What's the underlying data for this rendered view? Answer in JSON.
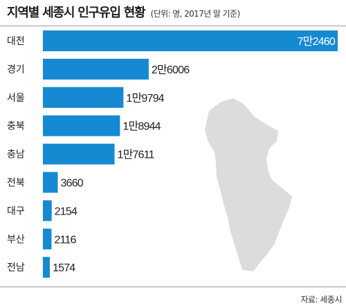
{
  "header": {
    "title": "지역별 세종시 인구유입 현황",
    "subtitle": "(단위: 명, 2017년 말 기준)"
  },
  "footer": {
    "source": "자료: 세종시"
  },
  "colors": {
    "bar": "#1589d2",
    "map": "#dcdcdc",
    "rule": "#9a9a9a"
  },
  "chart_data": {
    "type": "bar",
    "orientation": "horizontal",
    "categories": [
      "대전",
      "경기",
      "서울",
      "충북",
      "충남",
      "전북",
      "대구",
      "부산",
      "전남"
    ],
    "values": [
      72460,
      26006,
      19794,
      18944,
      17611,
      3660,
      2154,
      2116,
      1574
    ],
    "value_labels": [
      "7만2460",
      "2만6006",
      "1만9794",
      "1만8944",
      "1만7611",
      "3660",
      "2154",
      "2116",
      "1574"
    ],
    "title": "지역별 세종시 인구유입 현황",
    "unit": "명",
    "xlim": [
      0,
      72460
    ],
    "grid": false,
    "legend": "none"
  }
}
